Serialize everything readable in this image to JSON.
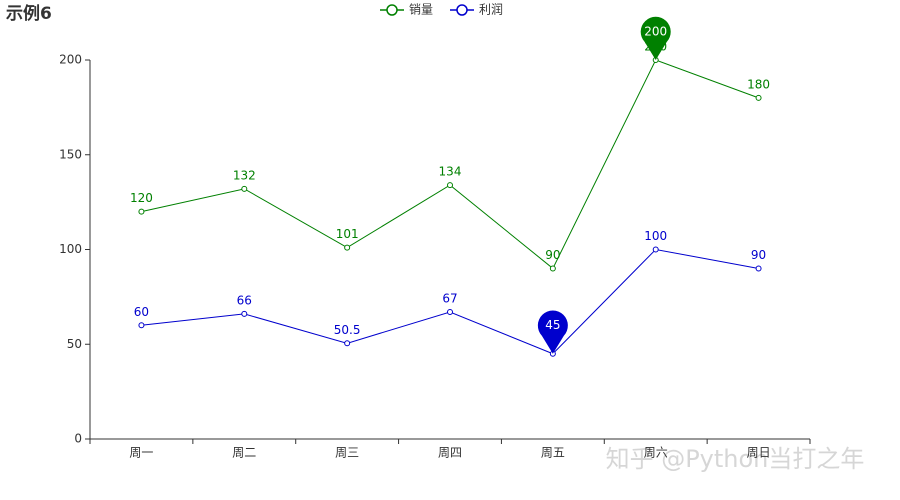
{
  "chart_data": {
    "type": "line",
    "title": "示例6",
    "categories": [
      "周一",
      "周二",
      "周三",
      "周四",
      "周五",
      "周六",
      "周日"
    ],
    "series": [
      {
        "name": "销量",
        "color": "#008000",
        "values": [
          120,
          132,
          101,
          134,
          90,
          200,
          180
        ],
        "mark_point": "max"
      },
      {
        "name": "利润",
        "color": "#0000cd",
        "values": [
          60,
          66,
          50.5,
          67,
          45,
          100,
          90
        ],
        "mark_point": "min"
      }
    ],
    "ylim": [
      0,
      200
    ],
    "yticks": [
      0,
      50,
      100,
      150,
      200
    ],
    "grid": false,
    "legend": "top",
    "watermark": "知乎 @Python当打之年"
  }
}
